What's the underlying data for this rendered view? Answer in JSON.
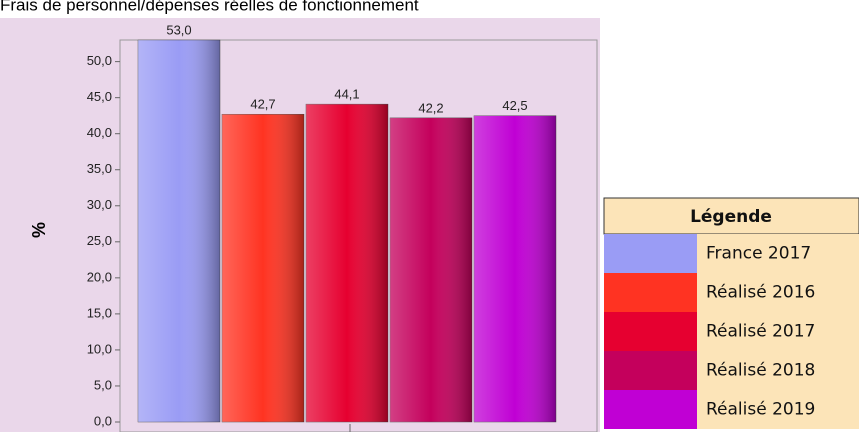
{
  "chart_data": {
    "type": "bar",
    "title": "Frais de personnel/dépenses réelles de fonctionnement",
    "y_label": "%",
    "legend_title": "Légende",
    "categories": [
      "France 2017",
      "Réalisé 2016",
      "Réalisé 2017",
      "Réalisé 2018",
      "Réalisé 2019"
    ],
    "values": [
      53.0,
      42.7,
      44.1,
      42.2,
      42.5
    ],
    "value_labels": [
      "53,0",
      "42,7",
      "44,1",
      "42,2",
      "42,5"
    ],
    "colors": [
      "#9a9cf5",
      "#ff3322",
      "#e60030",
      "#c4005c",
      "#c000d4"
    ],
    "ylim": [
      0,
      53
    ],
    "yticks": [
      {
        "value": 0,
        "label": "0,0"
      },
      {
        "value": 5,
        "label": "5,0"
      },
      {
        "value": 10,
        "label": "10,0"
      },
      {
        "value": 15,
        "label": "15,0"
      },
      {
        "value": 20,
        "label": "20,0"
      },
      {
        "value": 25,
        "label": "25,0"
      },
      {
        "value": 30,
        "label": "30,0"
      },
      {
        "value": 35,
        "label": "35,0"
      },
      {
        "value": 40,
        "label": "40,0"
      },
      {
        "value": 45,
        "label": "45,0"
      },
      {
        "value": 50,
        "label": "50,0"
      }
    ],
    "grid": false
  }
}
